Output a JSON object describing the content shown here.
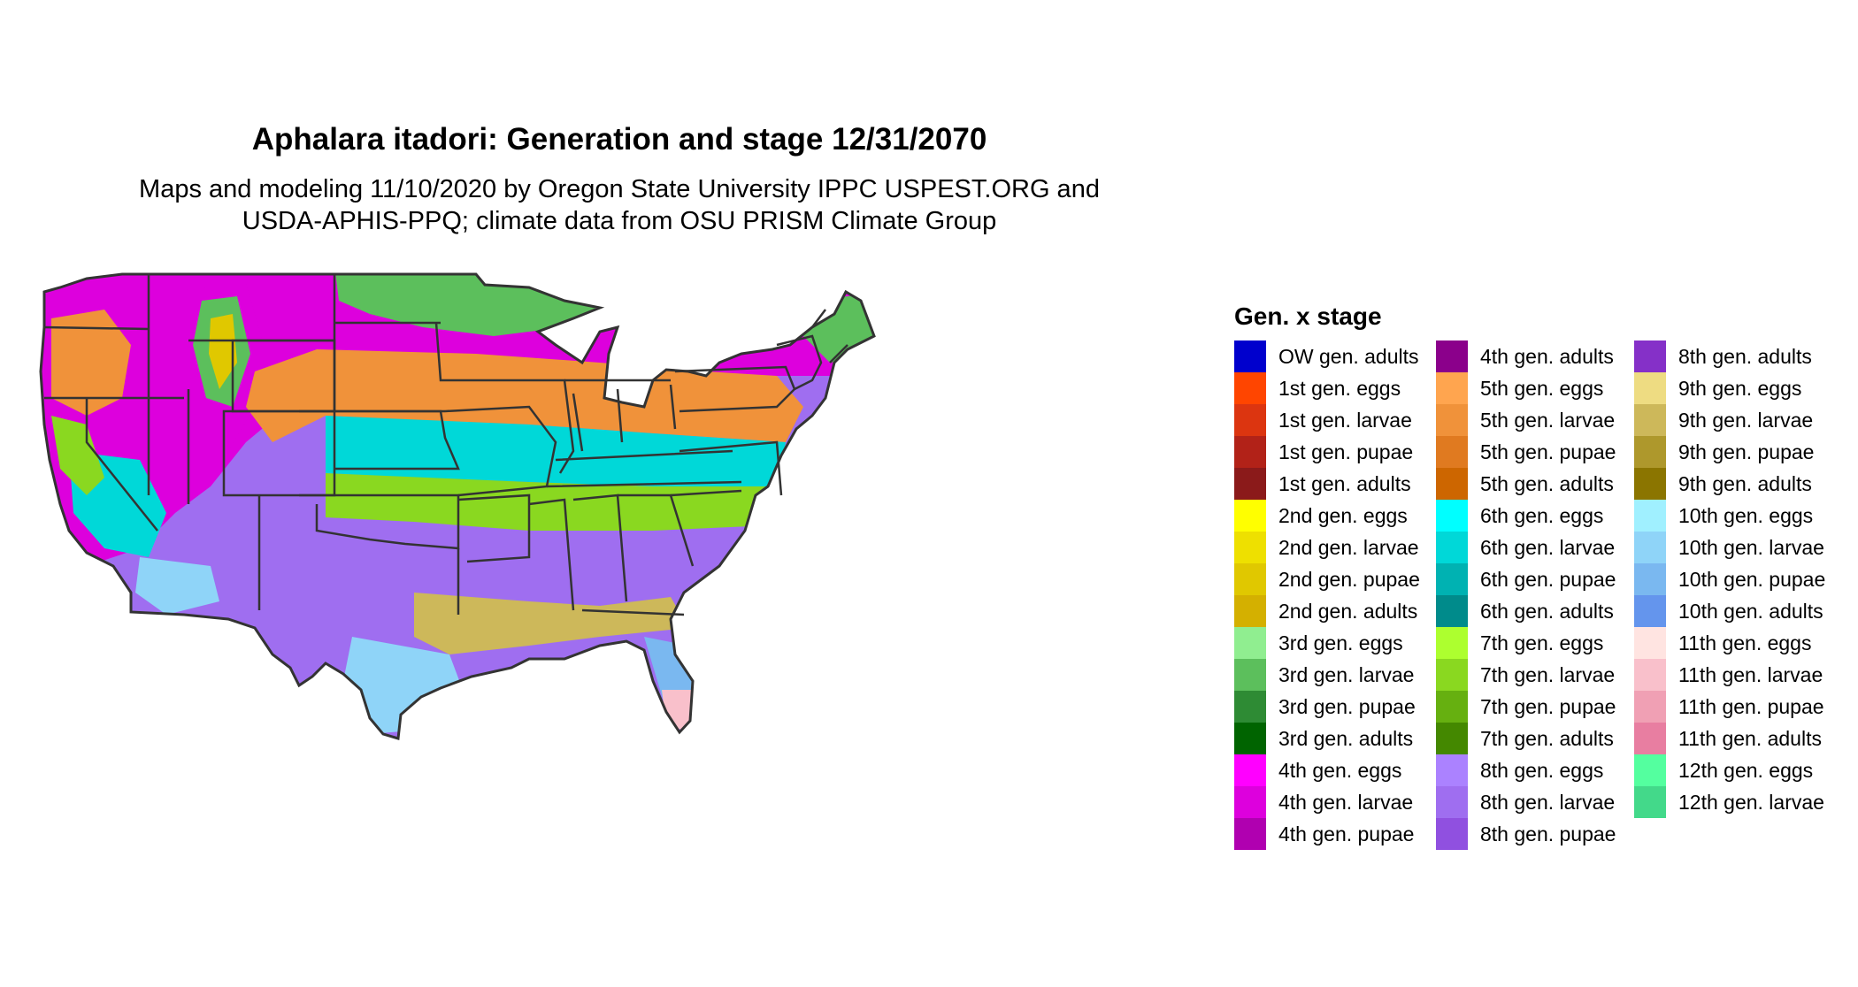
{
  "title": "Aphalara itadori: Generation and stage 12/31/2070",
  "subtitle_line1": "Maps and modeling 11/10/2020 by Oregon State University IPPC USPEST.ORG and",
  "subtitle_line2": "USDA-APHIS-PPQ; climate data from OSU PRISM Climate Group",
  "legend": {
    "title": "Gen. x stage",
    "columns": [
      [
        {
          "label": "OW gen. adults",
          "color": "#0000cd"
        },
        {
          "label": "1st gen. eggs",
          "color": "#ff4500"
        },
        {
          "label": "1st gen. larvae",
          "color": "#dc3510"
        },
        {
          "label": "1st gen. pupae",
          "color": "#b22218"
        },
        {
          "label": "1st gen. adults",
          "color": "#8b1a1a"
        },
        {
          "label": "2nd gen. eggs",
          "color": "#ffff00"
        },
        {
          "label": "2nd gen. larvae",
          "color": "#eee000"
        },
        {
          "label": "2nd gen. pupae",
          "color": "#e0c800"
        },
        {
          "label": "2nd gen. adults",
          "color": "#d4b000"
        },
        {
          "label": "3rd gen. eggs",
          "color": "#90ee90"
        },
        {
          "label": "3rd gen. larvae",
          "color": "#5cbf5c"
        },
        {
          "label": "3rd gen. pupae",
          "color": "#2e8b34"
        },
        {
          "label": "3rd gen. adults",
          "color": "#006400"
        },
        {
          "label": "4th gen. eggs",
          "color": "#ff00ff"
        },
        {
          "label": "4th gen. larvae",
          "color": "#dd00dd"
        },
        {
          "label": "4th gen. pupae",
          "color": "#b000b0"
        }
      ],
      [
        {
          "label": "4th gen. adults",
          "color": "#8b008b"
        },
        {
          "label": "5th gen. eggs",
          "color": "#ffa54f"
        },
        {
          "label": "5th gen. larvae",
          "color": "#f0923a"
        },
        {
          "label": "5th gen. pupae",
          "color": "#e07a20"
        },
        {
          "label": "5th gen. adults",
          "color": "#cd6600"
        },
        {
          "label": "6th gen. eggs",
          "color": "#00ffff"
        },
        {
          "label": "6th gen. larvae",
          "color": "#00d8d8"
        },
        {
          "label": "6th gen. pupae",
          "color": "#00b2b2"
        },
        {
          "label": "6th gen. adults",
          "color": "#008b8b"
        },
        {
          "label": "7th gen. eggs",
          "color": "#adff2f"
        },
        {
          "label": "7th gen. larvae",
          "color": "#8ad820"
        },
        {
          "label": "7th gen. pupae",
          "color": "#66b010"
        },
        {
          "label": "7th gen. adults",
          "color": "#448800"
        },
        {
          "label": "8th gen. eggs",
          "color": "#ab82ff"
        },
        {
          "label": "8th gen. larvae",
          "color": "#9f6ef0"
        },
        {
          "label": "8th gen. pupae",
          "color": "#9050e0"
        }
      ],
      [
        {
          "label": "8th gen. adults",
          "color": "#8530c8"
        },
        {
          "label": "9th gen. eggs",
          "color": "#eedc82"
        },
        {
          "label": "9th gen. larvae",
          "color": "#cdb85a"
        },
        {
          "label": "9th gen. pupae",
          "color": "#ae982c"
        },
        {
          "label": "9th gen. adults",
          "color": "#8b7500"
        },
        {
          "label": "10th gen. eggs",
          "color": "#a0f0ff"
        },
        {
          "label": "10th gen. larvae",
          "color": "#8fd4f8"
        },
        {
          "label": "10th gen. pupae",
          "color": "#7ab8f0"
        },
        {
          "label": "10th gen. adults",
          "color": "#6495ed"
        },
        {
          "label": "11th gen. eggs",
          "color": "#ffe4e1"
        },
        {
          "label": "11th gen. larvae",
          "color": "#f9c0cb"
        },
        {
          "label": "11th gen. pupae",
          "color": "#f0a0b4"
        },
        {
          "label": "11th gen. adults",
          "color": "#e87ea1"
        },
        {
          "label": "12th gen. eggs",
          "color": "#54ff9f"
        },
        {
          "label": "12th gen. larvae",
          "color": "#43d98a"
        }
      ]
    ]
  },
  "map_colors": {
    "outline": "#333333",
    "north_magenta": "#dd00dd",
    "north_green": "#5cbf5c",
    "orange_band": "#f0923a",
    "cyan_band": "#00d8d8",
    "lime_band": "#8ad820",
    "purple_band": "#9f6ef0",
    "tan_gulf": "#cdb85a",
    "lightblue_south": "#8fd4f8",
    "pink_tip": "#f9c0cb"
  }
}
